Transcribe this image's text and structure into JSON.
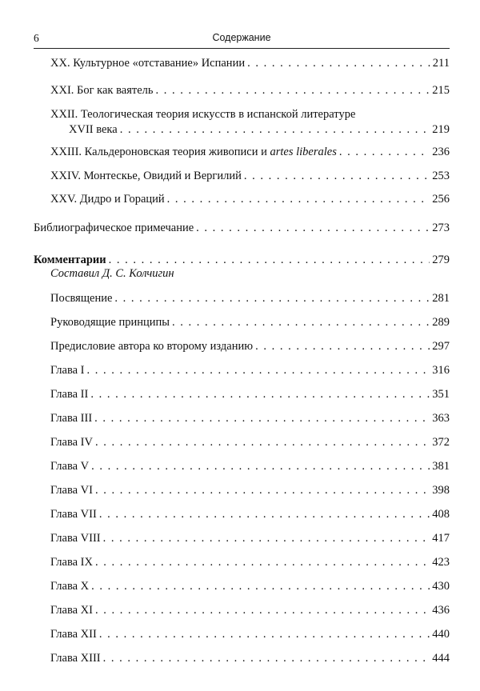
{
  "header": {
    "page_number": "6",
    "title": "Содержание"
  },
  "entries_top": [
    {
      "title": "XX. Культурное «отставание» Испании",
      "page": "211"
    },
    {
      "title": "XXI. Бог как ваятель",
      "page": "215"
    },
    {
      "title_line1": "XXII. Теологическая теория искусств в испанской литературе",
      "title": "XVII века",
      "page": "219"
    },
    {
      "title": "XXIII. Кальдероновская теория живописи и ",
      "title_italic": "artes liberales",
      "page": "236"
    },
    {
      "title": "XXIV. Монтескье, Овидий и Вергилий",
      "page": "253"
    },
    {
      "title": "XXV. Дидро и Гораций",
      "page": "256"
    }
  ],
  "bibliography": {
    "title": "Библиографическое примечание",
    "page": "273"
  },
  "commentary": {
    "title": "Комментарии",
    "page": "279",
    "compiler": "Составил Д. С. Колчигин"
  },
  "commentary_items": [
    {
      "title": "Посвящение",
      "page": "281"
    },
    {
      "title": "Руководящие принципы",
      "page": "289"
    },
    {
      "title": "Предисловие автора ко второму изданию",
      "page": "297"
    },
    {
      "title": "Глава I",
      "page": "316"
    },
    {
      "title": "Глава II",
      "page": "351"
    },
    {
      "title": "Глава III",
      "page": "363"
    },
    {
      "title": "Глава IV",
      "page": "372"
    },
    {
      "title": "Глава V",
      "page": "381"
    },
    {
      "title": "Глава VI",
      "page": "398"
    },
    {
      "title": "Глава VII",
      "page": "408"
    },
    {
      "title": "Глава VIII",
      "page": "417"
    },
    {
      "title": "Глава IX",
      "page": "423"
    },
    {
      "title": "Глава X",
      "page": "430"
    },
    {
      "title": "Глава XI",
      "page": "436"
    },
    {
      "title": "Глава XII",
      "page": "440"
    },
    {
      "title": "Глава XIII",
      "page": "444"
    }
  ]
}
